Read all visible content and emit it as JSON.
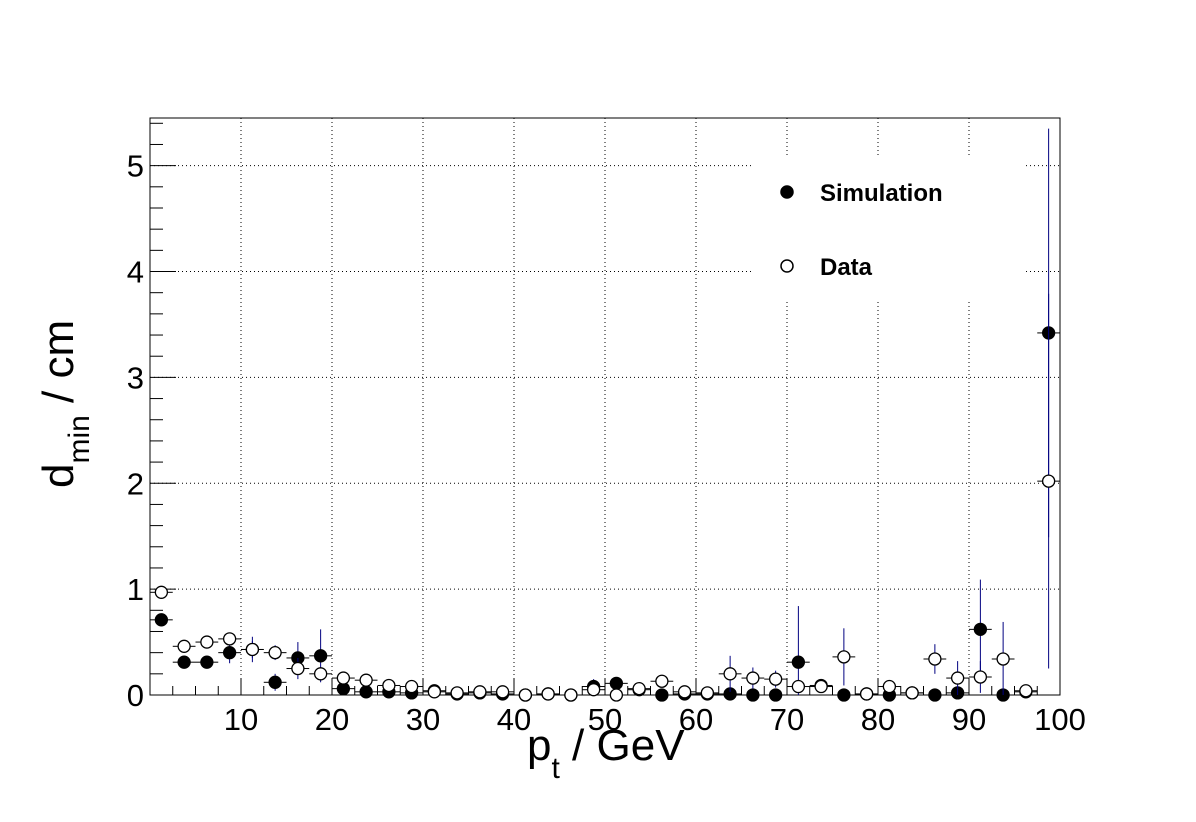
{
  "chart_data": {
    "type": "scatter",
    "xlabel": "p",
    "xlabel_sub": "t",
    "xlabel_suffix": " / GeV",
    "ylabel": "d",
    "ylabel_sub": "min",
    "ylabel_suffix": " / cm",
    "xlim": [
      0,
      100
    ],
    "ylim": [
      0,
      5.45
    ],
    "x_ticks": [
      10,
      20,
      30,
      40,
      50,
      60,
      70,
      80,
      90,
      100
    ],
    "x_tick_labels": [
      "10",
      "20",
      "30",
      "40",
      "50",
      "60",
      "70",
      "80",
      "90",
      "100"
    ],
    "y_ticks": [
      0,
      1,
      2,
      3,
      4,
      5
    ],
    "y_tick_labels": [
      "0",
      "1",
      "2",
      "3",
      "4",
      "5"
    ],
    "grid": true,
    "legend_position": "top-right",
    "x_error": 1.25,
    "series": [
      {
        "name": "Simulation",
        "marker": "filled-circle",
        "color": "#000000",
        "error_color": "#000080",
        "points": [
          {
            "x": 1.25,
            "y": 0.71,
            "err": 0.03
          },
          {
            "x": 3.75,
            "y": 0.31,
            "err": 0.03
          },
          {
            "x": 6.25,
            "y": 0.31,
            "err": 0.03
          },
          {
            "x": 8.75,
            "y": 0.4,
            "err": 0.1
          },
          {
            "x": 11.25,
            "y": 0.43,
            "err": 0.12
          },
          {
            "x": 13.75,
            "y": 0.12,
            "err": 0.08
          },
          {
            "x": 16.25,
            "y": 0.35,
            "err": 0.15
          },
          {
            "x": 18.75,
            "y": 0.37,
            "err": 0.25
          },
          {
            "x": 21.25,
            "y": 0.06,
            "err": 0.03
          },
          {
            "x": 23.75,
            "y": 0.03,
            "err": 0.02
          },
          {
            "x": 26.25,
            "y": 0.03,
            "err": 0.02
          },
          {
            "x": 28.75,
            "y": 0.02,
            "err": 0.02
          },
          {
            "x": 31.25,
            "y": 0.04,
            "err": 0.02
          },
          {
            "x": 33.75,
            "y": 0.01,
            "err": 0.01
          },
          {
            "x": 36.25,
            "y": 0.02,
            "err": 0.01
          },
          {
            "x": 38.75,
            "y": 0.01,
            "err": 0.01
          },
          {
            "x": 41.25,
            "y": 0.0,
            "err": 0.01
          },
          {
            "x": 43.75,
            "y": 0.01,
            "err": 0.01
          },
          {
            "x": 46.25,
            "y": 0.0,
            "err": 0.01
          },
          {
            "x": 48.75,
            "y": 0.08,
            "err": 0.07
          },
          {
            "x": 51.25,
            "y": 0.11,
            "err": 0.06
          },
          {
            "x": 53.75,
            "y": 0.05,
            "err": 0.04
          },
          {
            "x": 56.25,
            "y": 0.0,
            "err": 0.01
          },
          {
            "x": 58.75,
            "y": 0.01,
            "err": 0.01
          },
          {
            "x": 61.25,
            "y": 0.01,
            "err": 0.01
          },
          {
            "x": 63.75,
            "y": 0.01,
            "err": 0.01
          },
          {
            "x": 66.25,
            "y": 0.0,
            "err": 0.01
          },
          {
            "x": 68.75,
            "y": 0.0,
            "err": 0.01
          },
          {
            "x": 71.25,
            "y": 0.31,
            "err": 0.53
          },
          {
            "x": 73.75,
            "y": 0.09,
            "err": 0.05
          },
          {
            "x": 76.25,
            "y": 0.0,
            "err": 0.01
          },
          {
            "x": 78.75,
            "y": 0.01,
            "err": 0.01
          },
          {
            "x": 81.25,
            "y": 0.0,
            "err": 0.01
          },
          {
            "x": 83.75,
            "y": 0.02,
            "err": 0.02
          },
          {
            "x": 86.25,
            "y": 0.0,
            "err": 0.01
          },
          {
            "x": 88.75,
            "y": 0.02,
            "err": 0.02
          },
          {
            "x": 91.25,
            "y": 0.62,
            "err": 0.47
          },
          {
            "x": 93.75,
            "y": 0.0,
            "err": 0.01
          },
          {
            "x": 96.25,
            "y": 0.03,
            "err": 0.02
          },
          {
            "x": 98.75,
            "y": 3.42,
            "err": 1.93
          }
        ]
      },
      {
        "name": "Data",
        "marker": "open-circle",
        "color": "#000000",
        "error_color": "#000080",
        "points": [
          {
            "x": 1.25,
            "y": 0.97,
            "err": 0.03
          },
          {
            "x": 3.75,
            "y": 0.46,
            "err": 0.03
          },
          {
            "x": 6.25,
            "y": 0.5,
            "err": 0.04
          },
          {
            "x": 8.75,
            "y": 0.53,
            "err": 0.06
          },
          {
            "x": 11.25,
            "y": 0.43,
            "err": 0.08
          },
          {
            "x": 13.75,
            "y": 0.4,
            "err": 0.07
          },
          {
            "x": 16.25,
            "y": 0.25,
            "err": 0.1
          },
          {
            "x": 18.75,
            "y": 0.2,
            "err": 0.06
          },
          {
            "x": 21.25,
            "y": 0.16,
            "err": 0.04
          },
          {
            "x": 23.75,
            "y": 0.14,
            "err": 0.04
          },
          {
            "x": 26.25,
            "y": 0.09,
            "err": 0.03
          },
          {
            "x": 28.75,
            "y": 0.08,
            "err": 0.03
          },
          {
            "x": 31.25,
            "y": 0.03,
            "err": 0.02
          },
          {
            "x": 33.75,
            "y": 0.02,
            "err": 0.02
          },
          {
            "x": 36.25,
            "y": 0.03,
            "err": 0.02
          },
          {
            "x": 38.75,
            "y": 0.03,
            "err": 0.02
          },
          {
            "x": 41.25,
            "y": 0.0,
            "err": 0.01
          },
          {
            "x": 43.75,
            "y": 0.01,
            "err": 0.01
          },
          {
            "x": 46.25,
            "y": 0.0,
            "err": 0.01
          },
          {
            "x": 48.75,
            "y": 0.05,
            "err": 0.04
          },
          {
            "x": 51.25,
            "y": 0.0,
            "err": 0.01
          },
          {
            "x": 53.75,
            "y": 0.06,
            "err": 0.03
          },
          {
            "x": 56.25,
            "y": 0.13,
            "err": 0.06
          },
          {
            "x": 58.75,
            "y": 0.03,
            "err": 0.02
          },
          {
            "x": 61.25,
            "y": 0.02,
            "err": 0.02
          },
          {
            "x": 63.75,
            "y": 0.2,
            "err": 0.17
          },
          {
            "x": 66.25,
            "y": 0.16,
            "err": 0.1
          },
          {
            "x": 68.75,
            "y": 0.15,
            "err": 0.08
          },
          {
            "x": 71.25,
            "y": 0.08,
            "err": 0.06
          },
          {
            "x": 73.75,
            "y": 0.08,
            "err": 0.05
          },
          {
            "x": 76.25,
            "y": 0.36,
            "err": 0.27
          },
          {
            "x": 78.75,
            "y": 0.01,
            "err": 0.01
          },
          {
            "x": 81.25,
            "y": 0.08,
            "err": 0.05
          },
          {
            "x": 83.75,
            "y": 0.02,
            "err": 0.02
          },
          {
            "x": 86.25,
            "y": 0.34,
            "err": 0.14
          },
          {
            "x": 88.75,
            "y": 0.16,
            "err": 0.16
          },
          {
            "x": 91.25,
            "y": 0.17,
            "err": 0.15
          },
          {
            "x": 93.75,
            "y": 0.34,
            "err": 0.35
          },
          {
            "x": 96.25,
            "y": 0.04,
            "err": 0.03
          },
          {
            "x": 98.75,
            "y": 2.02,
            "err": 1.77
          }
        ]
      }
    ]
  }
}
